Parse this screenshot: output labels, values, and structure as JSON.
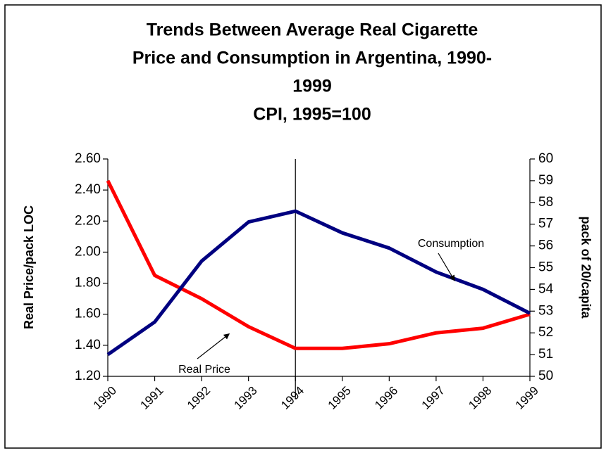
{
  "chart_data": {
    "type": "line",
    "title": [
      "Trends Between Average Real Cigarette",
      "Price and Consumption in Argentina, 1990-",
      "1999"
    ],
    "subtitle": "CPI, 1995=100",
    "y_label": "Real Price/pack LOC",
    "y2_label": "pack of 20/capita",
    "categories": [
      "1990",
      "1991",
      "1992",
      "1993",
      "1994",
      "1995",
      "1996",
      "1997",
      "1998",
      "1999"
    ],
    "series": [
      {
        "name": "Real Price",
        "color": "#ff0000",
        "axis": "y",
        "values": [
          2.46,
          1.85,
          1.7,
          1.52,
          1.38,
          1.38,
          1.41,
          1.48,
          1.51,
          1.6
        ]
      },
      {
        "name": "Consumption",
        "color": "#000080",
        "axis": "y2",
        "values": [
          51.0,
          52.5,
          55.3,
          57.1,
          57.6,
          56.6,
          55.9,
          54.8,
          54.0,
          52.9
        ]
      }
    ],
    "ylim": [
      1.2,
      2.6
    ],
    "yticks": [
      {
        "value": 1.2,
        "label": "1.20"
      },
      {
        "value": 1.4,
        "label": "1.40"
      },
      {
        "value": 1.6,
        "label": "1.60"
      },
      {
        "value": 1.8,
        "label": "1.80"
      },
      {
        "value": 2.0,
        "label": "2.00"
      },
      {
        "value": 2.2,
        "label": "2.20"
      },
      {
        "value": 2.4,
        "label": "2.40"
      },
      {
        "value": 2.6,
        "label": "2.60"
      }
    ],
    "y2lim": [
      50,
      60
    ],
    "y2ticks": [
      50,
      51,
      52,
      53,
      54,
      55,
      56,
      57,
      58,
      59,
      60
    ],
    "reference_line": "1994",
    "annotations": [
      {
        "text": "Consumption",
        "series": 1
      },
      {
        "text": "Real Price",
        "series": 0
      }
    ]
  }
}
